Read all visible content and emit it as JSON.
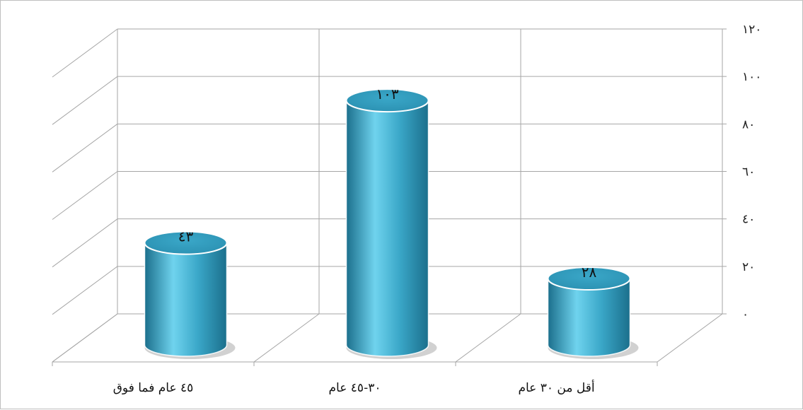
{
  "chart_data": {
    "type": "bar",
    "style": "3d-cylinder",
    "title": "",
    "xlabel": "",
    "ylabel": "",
    "categories": [
      "٤٥ عام فما فوق",
      "٣٠-٤٥ عام",
      "أقل من ٣٠ عام"
    ],
    "values": [
      43,
      103,
      28
    ],
    "value_labels": [
      "٤٣",
      "١٠٣",
      "٢٨"
    ],
    "ylim": [
      0,
      120
    ],
    "yticks": [
      0,
      20,
      40,
      60,
      80,
      100,
      120
    ],
    "ytick_labels": [
      "٠",
      "٢٠",
      "٤٠",
      "٦٠",
      "٨٠",
      "١٠٠",
      "١٢٠"
    ],
    "y_axis_side": "right",
    "grid": true,
    "legend": "none",
    "colors": {
      "bar_body": "#3aa7c8",
      "bar_light": "#6fd3ee",
      "bar_dark": "#1b6f8c",
      "bar_top": "#2a8fb0",
      "grid": "#a6a6a6"
    }
  }
}
